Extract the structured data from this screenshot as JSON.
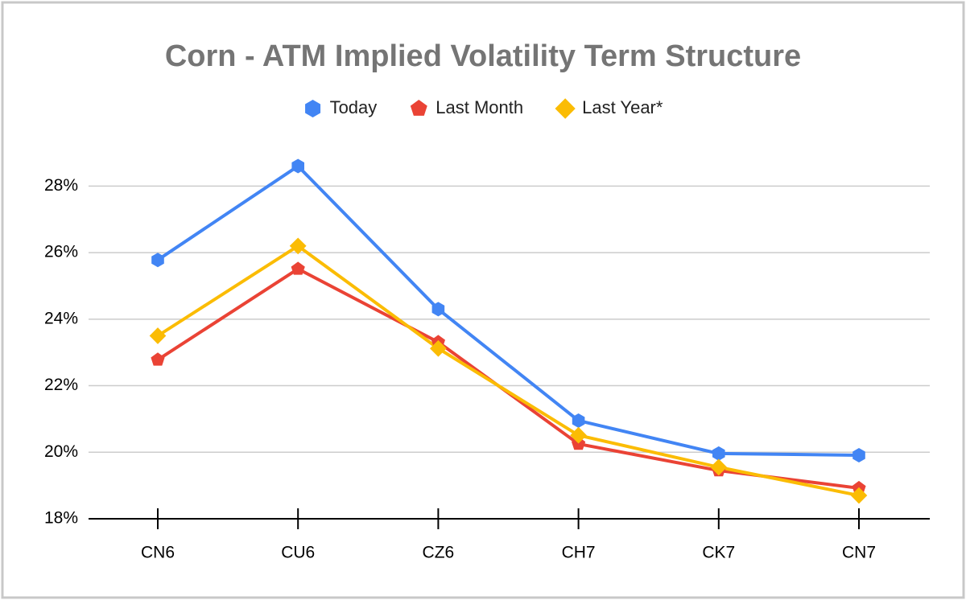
{
  "chart_data": {
    "type": "line",
    "title": "Corn - ATM Implied Volatility Term Structure",
    "categories": [
      "CN6",
      "CU6",
      "CZ6",
      "CH7",
      "CK7",
      "CN7"
    ],
    "series": [
      {
        "name": "Today",
        "color": "#4285f4",
        "marker": "hexagon",
        "values": [
          25.78,
          28.6,
          24.3,
          20.95,
          19.96,
          19.91
        ]
      },
      {
        "name": "Last Month",
        "color": "#ea4335",
        "marker": "pentagon",
        "values": [
          22.78,
          25.51,
          23.31,
          20.25,
          19.45,
          18.92
        ]
      },
      {
        "name": "Last Year*",
        "color": "#fbbc04",
        "marker": "diamond",
        "values": [
          23.5,
          26.2,
          23.12,
          20.51,
          19.55,
          18.7
        ]
      }
    ],
    "ylim": [
      18,
      29
    ],
    "yticks": [
      {
        "value": 18,
        "label": "18%"
      },
      {
        "value": 20,
        "label": "20%"
      },
      {
        "value": 22,
        "label": "22%"
      },
      {
        "value": 24,
        "label": "24%"
      },
      {
        "value": 26,
        "label": "26%"
      },
      {
        "value": 28,
        "label": "28%"
      }
    ],
    "grid": true,
    "legend": "top"
  }
}
